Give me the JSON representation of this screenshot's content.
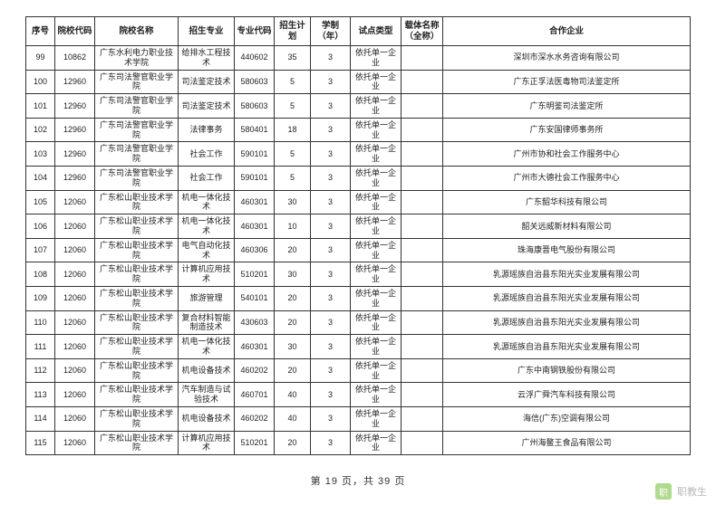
{
  "table": {
    "headers": [
      "序号",
      "院校代码",
      "院校名称",
      "招生专业",
      "专业代码",
      "招生计划",
      "学制（年）",
      "试点类型",
      "载体名称（全称）",
      "合作企业"
    ],
    "rows": [
      [
        "99",
        "10862",
        "广东水利电力职业技术学院",
        "给排水工程技术",
        "440602",
        "35",
        "3",
        "依托单一企业",
        "",
        "深圳市深水水务咨询有限公司"
      ],
      [
        "100",
        "12960",
        "广东司法警官职业学院",
        "司法鉴定技术",
        "580603",
        "5",
        "3",
        "依托单一企业",
        "",
        "广东正孚法医毒物司法鉴定所"
      ],
      [
        "101",
        "12960",
        "广东司法警官职业学院",
        "司法鉴定技术",
        "580603",
        "5",
        "3",
        "依托单一企业",
        "",
        "广东明鉴司法鉴定所"
      ],
      [
        "102",
        "12960",
        "广东司法警官职业学院",
        "法律事务",
        "580401",
        "18",
        "3",
        "依托单一企业",
        "",
        "广东安国律师事务所"
      ],
      [
        "103",
        "12960",
        "广东司法警官职业学院",
        "社会工作",
        "590101",
        "5",
        "3",
        "依托单一企业",
        "",
        "广州市协和社会工作服务中心"
      ],
      [
        "104",
        "12960",
        "广东司法警官职业学院",
        "社会工作",
        "590101",
        "5",
        "3",
        "依托单一企业",
        "",
        "广州市大德社会工作服务中心"
      ],
      [
        "105",
        "12060",
        "广东松山职业技术学院",
        "机电一体化技术",
        "460301",
        "30",
        "3",
        "依托单一企业",
        "",
        "广东韶华科技有限公司"
      ],
      [
        "106",
        "12060",
        "广东松山职业技术学院",
        "机电一体化技术",
        "460301",
        "10",
        "3",
        "依托单一企业",
        "",
        "韶关远威新材料有限公司"
      ],
      [
        "107",
        "12060",
        "广东松山职业技术学院",
        "电气自动化技术",
        "460306",
        "20",
        "3",
        "依托单一企业",
        "",
        "珠海康晋电气股份有限公司"
      ],
      [
        "108",
        "12060",
        "广东松山职业技术学院",
        "计算机应用技术",
        "510201",
        "30",
        "3",
        "依托单一企业",
        "",
        "乳源瑶族自治县东阳光实业发展有限公司"
      ],
      [
        "109",
        "12060",
        "广东松山职业技术学院",
        "旅游管理",
        "540101",
        "20",
        "3",
        "依托单一企业",
        "",
        "乳源瑶族自治县东阳光实业发展有限公司"
      ],
      [
        "110",
        "12060",
        "广东松山职业技术学院",
        "复合材料智能制造技术",
        "430603",
        "20",
        "3",
        "依托单一企业",
        "",
        "乳源瑶族自治县东阳光实业发展有限公司"
      ],
      [
        "111",
        "12060",
        "广东松山职业技术学院",
        "机电一体化技术",
        "460301",
        "30",
        "3",
        "依托单一企业",
        "",
        "乳源瑶族自治县东阳光实业发展有限公司"
      ],
      [
        "112",
        "12060",
        "广东松山职业技术学院",
        "机电设备技术",
        "460202",
        "20",
        "3",
        "依托单一企业",
        "",
        "广东中南钢铁股份有限公司"
      ],
      [
        "113",
        "12060",
        "广东松山职业技术学院",
        "汽车制造与试验技术",
        "460701",
        "40",
        "3",
        "依托单一企业",
        "",
        "云浮广舜汽车科技有限公司"
      ],
      [
        "114",
        "12060",
        "广东松山职业技术学院",
        "机电设备技术",
        "460202",
        "40",
        "3",
        "依托单一企业",
        "",
        "海信(广东)空调有限公司"
      ],
      [
        "115",
        "12060",
        "广东松山职业技术学院",
        "计算机应用技术",
        "510201",
        "20",
        "3",
        "依托单一企业",
        "",
        "广州海鳌王食品有限公司"
      ]
    ]
  },
  "footer": {
    "text": "第 19 页，共 39 页"
  },
  "watermark": {
    "icon": "职",
    "text": "职教生"
  },
  "colors": {
    "border": "#333333",
    "text": "#222222",
    "background": "#ffffff"
  }
}
